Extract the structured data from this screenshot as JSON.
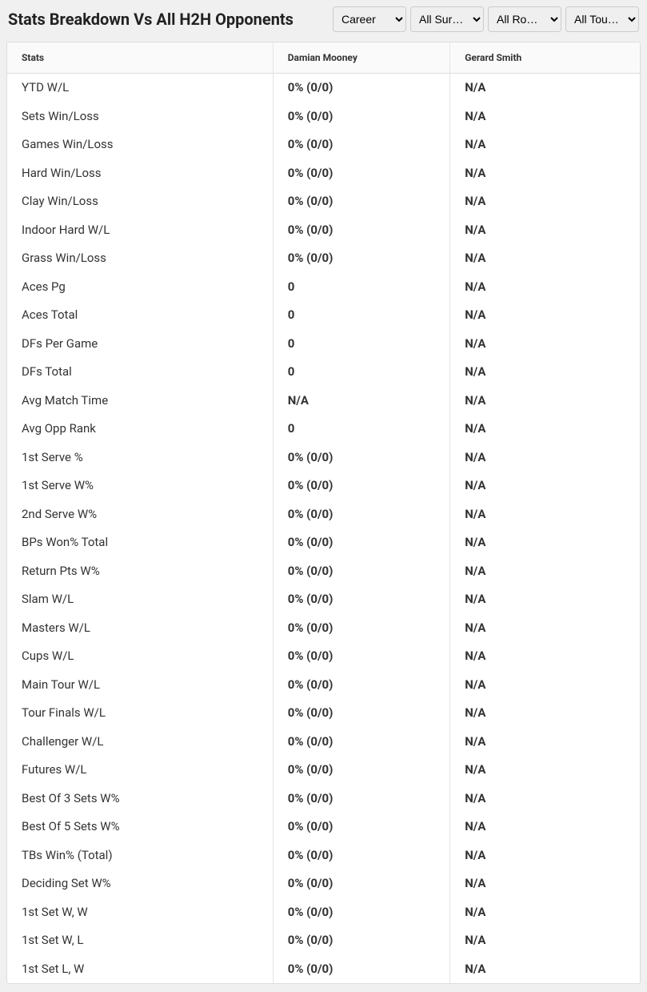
{
  "title": "Stats Breakdown Vs All H2H Opponents",
  "filters": {
    "period": {
      "selected": "Career"
    },
    "surface": {
      "selected": "All Surfaces"
    },
    "round": {
      "selected": "All Rounds"
    },
    "tournament": {
      "selected": "All Tournaments"
    }
  },
  "columns": {
    "stats": "Stats",
    "player1": "Damian Mooney",
    "player2": "Gerard Smith"
  },
  "rows": [
    {
      "label": "YTD W/L",
      "p1": "0% (0/0)",
      "p2": "N/A"
    },
    {
      "label": "Sets Win/Loss",
      "p1": "0% (0/0)",
      "p2": "N/A"
    },
    {
      "label": "Games Win/Loss",
      "p1": "0% (0/0)",
      "p2": "N/A"
    },
    {
      "label": "Hard Win/Loss",
      "p1": "0% (0/0)",
      "p2": "N/A"
    },
    {
      "label": "Clay Win/Loss",
      "p1": "0% (0/0)",
      "p2": "N/A"
    },
    {
      "label": "Indoor Hard W/L",
      "p1": "0% (0/0)",
      "p2": "N/A"
    },
    {
      "label": "Grass Win/Loss",
      "p1": "0% (0/0)",
      "p2": "N/A"
    },
    {
      "label": "Aces Pg",
      "p1": "0",
      "p2": "N/A"
    },
    {
      "label": "Aces Total",
      "p1": "0",
      "p2": "N/A"
    },
    {
      "label": "DFs Per Game",
      "p1": "0",
      "p2": "N/A"
    },
    {
      "label": "DFs Total",
      "p1": "0",
      "p2": "N/A"
    },
    {
      "label": "Avg Match Time",
      "p1": "N/A",
      "p2": "N/A"
    },
    {
      "label": "Avg Opp Rank",
      "p1": "0",
      "p2": "N/A"
    },
    {
      "label": "1st Serve %",
      "p1": "0% (0/0)",
      "p2": "N/A"
    },
    {
      "label": "1st Serve W%",
      "p1": "0% (0/0)",
      "p2": "N/A"
    },
    {
      "label": "2nd Serve W%",
      "p1": "0% (0/0)",
      "p2": "N/A"
    },
    {
      "label": "BPs Won% Total",
      "p1": "0% (0/0)",
      "p2": "N/A"
    },
    {
      "label": "Return Pts W%",
      "p1": "0% (0/0)",
      "p2": "N/A"
    },
    {
      "label": "Slam W/L",
      "p1": "0% (0/0)",
      "p2": "N/A"
    },
    {
      "label": "Masters W/L",
      "p1": "0% (0/0)",
      "p2": "N/A"
    },
    {
      "label": "Cups W/L",
      "p1": "0% (0/0)",
      "p2": "N/A"
    },
    {
      "label": "Main Tour W/L",
      "p1": "0% (0/0)",
      "p2": "N/A"
    },
    {
      "label": "Tour Finals W/L",
      "p1": "0% (0/0)",
      "p2": "N/A"
    },
    {
      "label": "Challenger W/L",
      "p1": "0% (0/0)",
      "p2": "N/A"
    },
    {
      "label": "Futures W/L",
      "p1": "0% (0/0)",
      "p2": "N/A"
    },
    {
      "label": "Best Of 3 Sets W%",
      "p1": "0% (0/0)",
      "p2": "N/A"
    },
    {
      "label": "Best Of 5 Sets W%",
      "p1": "0% (0/0)",
      "p2": "N/A"
    },
    {
      "label": "TBs Win% (Total)",
      "p1": "0% (0/0)",
      "p2": "N/A"
    },
    {
      "label": "Deciding Set W%",
      "p1": "0% (0/0)",
      "p2": "N/A"
    },
    {
      "label": "1st Set W, W",
      "p1": "0% (0/0)",
      "p2": "N/A"
    },
    {
      "label": "1st Set W, L",
      "p1": "0% (0/0)",
      "p2": "N/A"
    },
    {
      "label": "1st Set L, W",
      "p1": "0% (0/0)",
      "p2": "N/A"
    }
  ],
  "styling": {
    "background_color": "#f0f0f0",
    "table_bg": "#ffffff",
    "header_bg": "#fafafa",
    "border_color": "#ddd",
    "cell_border": "#e5e5e5",
    "title_fontsize": 20,
    "header_fontsize": 12,
    "cell_fontsize": 15,
    "text_color": "#333"
  }
}
